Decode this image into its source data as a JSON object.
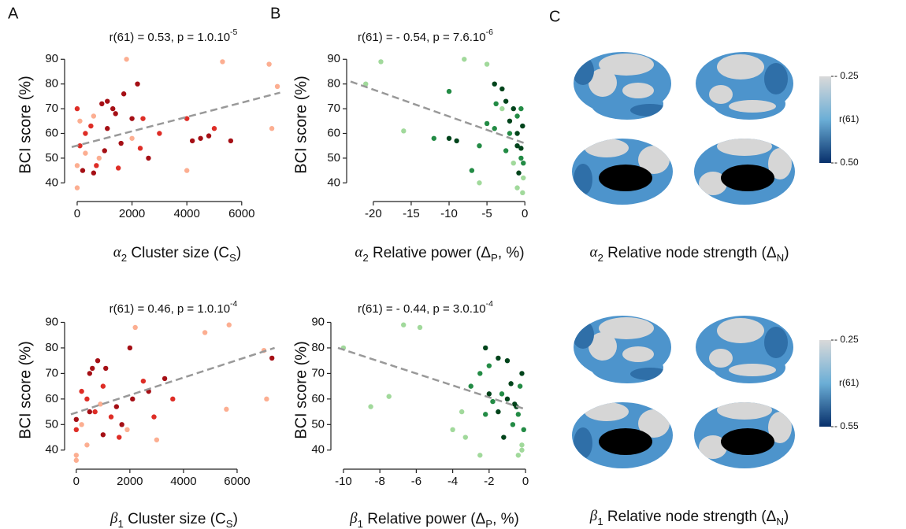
{
  "panel_labels": [
    "A",
    "B",
    "C"
  ],
  "chart_data": [
    {
      "type": "scatter",
      "stat": [
        {
          "text": "r(61) = 0.53, p = 1.0.10"
        },
        {
          "text": "-5",
          "style": "sup"
        }
      ],
      "ylabel": "BCI score  (%)",
      "xlabel": [
        {
          "text": "α",
          "style": "math"
        },
        {
          "text": "2",
          "style": "sub"
        },
        {
          "text": " Cluster size (C"
        },
        {
          "text": "S",
          "style": "sub"
        },
        {
          "text": ")"
        }
      ],
      "xlim": [
        -200,
        7500
      ],
      "xticks": [
        0,
        2000,
        4000,
        6000
      ],
      "ylim": [
        35,
        92
      ],
      "yticks": [
        40,
        50,
        60,
        70,
        80,
        90
      ],
      "series": [
        {
          "color": "#a50f15",
          "x": [
            200,
            600,
            1000,
            1100,
            1300,
            900,
            1100,
            1400,
            1700,
            2000,
            2200,
            1600,
            4200,
            4500,
            4800,
            5600,
            2600
          ],
          "values": [
            45,
            44,
            53,
            62,
            70,
            72,
            73,
            68,
            76,
            66,
            80,
            56,
            57,
            58,
            59,
            57,
            50
          ]
        },
        {
          "color": "#de2d26",
          "x": [
            0,
            100,
            300,
            500,
            700,
            1500,
            2400,
            3000,
            4000,
            2300,
            5000
          ],
          "values": [
            70,
            55,
            60,
            63,
            47,
            46,
            66,
            60,
            66,
            54,
            62
          ]
        },
        {
          "color": "#fcae91",
          "x": [
            0,
            0,
            100,
            300,
            800,
            1800,
            5300,
            7000,
            7100,
            7300,
            4000,
            600,
            2000
          ],
          "values": [
            38,
            47,
            65,
            52,
            50,
            90,
            89,
            88,
            62,
            79,
            45,
            67,
            58
          ]
        }
      ],
      "fit": {
        "color": "#999999",
        "x": [
          -200,
          7400
        ],
        "values": [
          54.5,
          76.5
        ]
      }
    },
    {
      "type": "scatter",
      "stat": [
        {
          "text": "r(61) = - 0.54, p = 7.6.10"
        },
        {
          "text": "-6",
          "style": "sup"
        }
      ],
      "ylabel": "BCI score  (%)",
      "xlabel": [
        {
          "text": "α",
          "style": "math"
        },
        {
          "text": "2",
          "style": "sub"
        },
        {
          "text": " Relative power (Δ"
        },
        {
          "text": "P",
          "style": "sub"
        },
        {
          "text": ", %)"
        }
      ],
      "xlim": [
        -23,
        0.5
      ],
      "xticks": [
        -20,
        -15,
        -10,
        -5,
        0
      ],
      "ylim": [
        35,
        92
      ],
      "yticks": [
        40,
        50,
        60,
        70,
        80,
        90
      ],
      "series": [
        {
          "color": "#00441b",
          "x": [
            -0.5,
            -1,
            -2,
            -1.5,
            -3,
            -4,
            -2.5,
            -0.3,
            -9,
            -10,
            -0.8,
            -1
          ],
          "values": [
            54,
            55,
            65,
            70,
            78,
            80,
            73,
            63,
            57,
            58,
            44,
            60
          ]
        },
        {
          "color": "#238b45",
          "x": [
            -3.8,
            -2,
            -1,
            -4,
            -5,
            -0.5,
            -12,
            -10,
            -6,
            -7,
            -0.5,
            -0.2,
            -2.5
          ],
          "values": [
            72,
            60,
            67,
            62,
            64,
            50,
            58,
            77,
            55,
            45,
            70,
            48,
            53
          ]
        },
        {
          "color": "#a1d99b",
          "x": [
            -21,
            -19,
            -16,
            -0.3,
            -0.2,
            -1,
            -8,
            -5,
            -1.5,
            -6,
            -3
          ],
          "values": [
            80,
            89,
            61,
            36,
            42,
            38,
            90,
            88,
            48,
            40,
            70
          ]
        }
      ],
      "fit": {
        "color": "#999999",
        "x": [
          -23,
          0
        ],
        "values": [
          81,
          56
        ]
      }
    },
    {
      "type": "scatter",
      "stat": [
        {
          "text": "r(61) = 0.46, p = 1.0.10"
        },
        {
          "text": "-4",
          "style": "sup"
        }
      ],
      "ylabel": "BCI score  (%)",
      "xlabel": [
        {
          "text": "β",
          "style": "math"
        },
        {
          "text": "1",
          "style": "sub"
        },
        {
          "text": " Cluster size (C"
        },
        {
          "text": "S",
          "style": "sub"
        },
        {
          "text": ")"
        }
      ],
      "xlim": [
        -200,
        7500
      ],
      "xticks": [
        0,
        2000,
        4000,
        6000
      ],
      "ylim": [
        35,
        92
      ],
      "yticks": [
        40,
        50,
        60,
        70,
        80,
        90
      ],
      "series": [
        {
          "color": "#a50f15",
          "x": [
            0,
            500,
            500,
            600,
            800,
            1000,
            1100,
            1500,
            2000,
            2100,
            2700,
            3300,
            7300,
            1700
          ],
          "values": [
            52,
            55,
            70,
            72,
            75,
            46,
            72,
            57,
            80,
            60,
            63,
            68,
            76,
            50
          ]
        },
        {
          "color": "#de2d26",
          "x": [
            0,
            200,
            400,
            700,
            1300,
            1600,
            2500,
            2900,
            3600,
            1000
          ],
          "values": [
            48,
            63,
            60,
            55,
            53,
            45,
            67,
            53,
            60,
            65
          ]
        },
        {
          "color": "#fcae91",
          "x": [
            0,
            0,
            200,
            400,
            900,
            1900,
            4800,
            5700,
            5600,
            7000,
            7100,
            2200,
            3000
          ],
          "values": [
            38,
            36,
            50,
            42,
            58,
            48,
            86,
            89,
            56,
            79,
            60,
            88,
            44
          ]
        }
      ],
      "fit": {
        "color": "#999999",
        "x": [
          -200,
          7400
        ],
        "values": [
          54,
          80
        ]
      }
    },
    {
      "type": "scatter",
      "stat": [
        {
          "text": "r(61) = - 0.44, p = 3.0.10"
        },
        {
          "text": "-4",
          "style": "sup"
        }
      ],
      "ylabel": "BCI score  (%)",
      "xlabel": [
        {
          "text": "β",
          "style": "math"
        },
        {
          "text": "1",
          "style": "sub"
        },
        {
          "text": " Relative power (Δ"
        },
        {
          "text": "P",
          "style": "sub"
        },
        {
          "text": ", %)"
        }
      ],
      "xlim": [
        -10.3,
        0.3
      ],
      "xticks": [
        -10,
        -8,
        -6,
        -4,
        -2,
        0
      ],
      "ylim": [
        35,
        92
      ],
      "yticks": [
        40,
        50,
        60,
        70,
        80,
        90
      ],
      "series": [
        {
          "color": "#00441b",
          "x": [
            -0.5,
            -1,
            -2,
            -2.2,
            -1.5,
            -1,
            -0.8,
            -0.2,
            -1.2,
            -1.5,
            -0.6
          ],
          "values": [
            57,
            60,
            62,
            80,
            76,
            75,
            66,
            70,
            45,
            55,
            58
          ]
        },
        {
          "color": "#238b45",
          "x": [
            -2.5,
            -2,
            -0.3,
            -0.4,
            -1.8,
            -3,
            -0.7,
            -2.2,
            -1.3,
            -0.1
          ],
          "values": [
            70,
            73,
            65,
            54,
            59,
            65,
            50,
            54,
            62,
            48
          ]
        },
        {
          "color": "#a1d99b",
          "x": [
            -10,
            -8.5,
            -7.5,
            -6.7,
            -5.8,
            -3.5,
            -3.3,
            -0.2,
            -0.4,
            -0.2,
            -2.5,
            -4
          ],
          "values": [
            80,
            57,
            61,
            89,
            88,
            55,
            45,
            42,
            38,
            40,
            38,
            48
          ]
        }
      ],
      "fit": {
        "color": "#999999",
        "x": [
          -10.3,
          0
        ],
        "values": [
          80,
          56
        ]
      }
    }
  ],
  "brain_panels": [
    {
      "caption": [
        {
          "text": "α",
          "style": "math"
        },
        {
          "text": "2",
          "style": "sub"
        },
        {
          "text": " Relative node strength (Δ"
        },
        {
          "text": "N",
          "style": "sub"
        },
        {
          "text": ")"
        }
      ],
      "colorbar": {
        "label": "r(61)",
        "lim": [
          0.25,
          0.5
        ],
        "colors": [
          "#d9d9d9",
          "#6baed6",
          "#08306b"
        ],
        "ticks": [
          {
            "value": 0.25,
            "label": "- 0.25"
          },
          {
            "value": 0.5,
            "label": "- 0.50"
          }
        ]
      }
    },
    {
      "caption": [
        {
          "text": "β",
          "style": "math"
        },
        {
          "text": "1",
          "style": "sub"
        },
        {
          "text": " Relative node strength (Δ"
        },
        {
          "text": "N",
          "style": "sub"
        },
        {
          "text": ")"
        }
      ],
      "colorbar": {
        "label": "r(61)",
        "lim": [
          0.25,
          0.55
        ],
        "colors": [
          "#d9d9d9",
          "#6baed6",
          "#08306b"
        ],
        "ticks": [
          {
            "value": 0.25,
            "label": "- 0.25"
          },
          {
            "value": 0.55,
            "label": "- 0.55"
          }
        ]
      }
    }
  ]
}
